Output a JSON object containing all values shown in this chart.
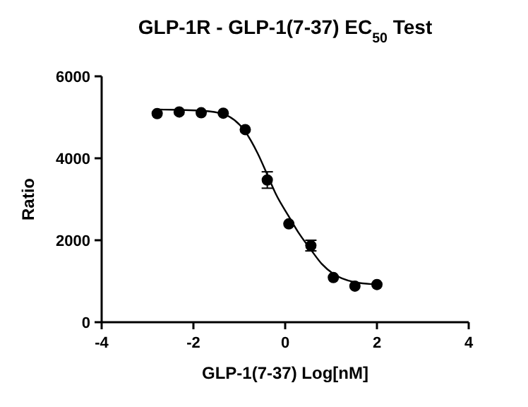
{
  "chart_data": {
    "type": "scatter",
    "title": "GLP-1R - GLP-1(7-37) EC$_{50}$ Test",
    "xlabel": "GLP-1(7-37) Log[nM]",
    "ylabel": "Ratio",
    "xlim": [
      -4,
      4
    ],
    "xticks": [
      -4,
      -2,
      0,
      2,
      4
    ],
    "ylim": [
      0,
      6000
    ],
    "yticks": [
      0,
      2000,
      4000,
      6000
    ],
    "grid": false,
    "series": [
      {
        "color": "#000000",
        "marker": "circle",
        "x": [
          -2.79,
          -2.31,
          -1.83,
          -1.35,
          -0.87,
          -0.39,
          0.08,
          0.56,
          1.05,
          1.52,
          2.0
        ],
        "values": [
          5090,
          5130,
          5110,
          5100,
          4700,
          3470,
          2400,
          1870,
          1090,
          880,
          920
        ],
        "errors": [
          null,
          null,
          null,
          null,
          null,
          200,
          null,
          130,
          null,
          null,
          null
        ]
      },
      {
        "type": "line",
        "color": "#000000",
        "marker": "none",
        "line_style": "solid",
        "x": [
          -2.8,
          -2.3,
          -1.8,
          -1.35,
          -0.87,
          -0.6,
          -0.39,
          -0.2,
          0.08,
          0.3,
          0.56,
          0.8,
          1.05,
          1.5,
          2.0
        ],
        "values": [
          5190,
          5180,
          5160,
          5080,
          4650,
          4120,
          3600,
          3120,
          2580,
          2170,
          1770,
          1420,
          1180,
          980,
          920
        ]
      }
    ]
  }
}
